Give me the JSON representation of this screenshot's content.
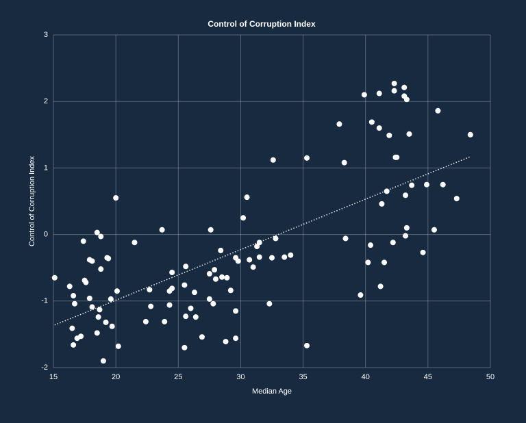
{
  "chart_data": {
    "type": "scatter",
    "title": "Control of Corruption Index",
    "x_label": "Median Age",
    "y_label": "Control of Corruption Index",
    "xlim": [
      15,
      50
    ],
    "xticks": [
      15,
      20,
      25,
      30,
      35,
      40,
      45,
      50
    ],
    "ylim": [
      -2,
      3
    ],
    "yticks": [
      -2,
      -1,
      0,
      1,
      2,
      3
    ],
    "grid": true,
    "color": "#ffffff",
    "trend_color": "#dfe6ee",
    "x": [
      15.1,
      16.3,
      16.6,
      16.7,
      16.5,
      16.6,
      16.9,
      17.2,
      17.4,
      17.5,
      17.6,
      17.9,
      18.1,
      17.9,
      18.1,
      18.5,
      18.8,
      18.8,
      18.5,
      18.6,
      18.7,
      19.0,
      19.2,
      19.3,
      19.4,
      19.6,
      19.7,
      20.0,
      20.1,
      20.2,
      21.5,
      22.4,
      22.7,
      22.8,
      23.7,
      23.9,
      24.3,
      24.3,
      24.5,
      24.5,
      25.6,
      25.5,
      25.6,
      25.5,
      26.0,
      26.3,
      26.4,
      26.9,
      27.6,
      27.5,
      27.5,
      27.8,
      27.9,
      28.0,
      28.4,
      28.5,
      28.9,
      28.8,
      29.2,
      29.6,
      29.8,
      29.6,
      29.6,
      30.2,
      30.5,
      30.7,
      31.0,
      31.3,
      31.5,
      31.5,
      32.3,
      32.5,
      32.6,
      32.8,
      33.5,
      34.0,
      35.3,
      35.3,
      37.9,
      38.3,
      38.4,
      39.6,
      39.9,
      40.2,
      40.4,
      40.5,
      41.1,
      41.1,
      41.2,
      41.3,
      41.5,
      41.7,
      41.9,
      42.2,
      42.3,
      42.3,
      42.4,
      42.5,
      43.1,
      43.1,
      43.2,
      43.2,
      43.3,
      43.3,
      43.5,
      43.7,
      44.6,
      44.9,
      45.5,
      45.8,
      46.2,
      47.3,
      48.4
    ],
    "y": [
      -0.65,
      -0.78,
      -0.92,
      -1.04,
      -1.41,
      -1.66,
      -1.56,
      -1.53,
      -0.1,
      -0.69,
      -0.72,
      -0.38,
      -0.4,
      -0.96,
      -1.09,
      0.03,
      -0.03,
      -0.52,
      -1.48,
      -1.24,
      -1.13,
      -1.9,
      -1.32,
      -0.35,
      -0.36,
      -0.97,
      -1.38,
      0.55,
      -0.85,
      -1.68,
      -0.12,
      -1.31,
      -0.83,
      -1.08,
      0.07,
      -1.31,
      -0.85,
      -1.06,
      -0.81,
      -0.57,
      -0.48,
      -0.76,
      -1.23,
      -1.7,
      -1.11,
      -0.87,
      -1.24,
      -1.54,
      0.07,
      -0.59,
      -0.97,
      -1.04,
      -0.53,
      -0.67,
      -0.24,
      -0.64,
      -0.65,
      -1.61,
      -0.84,
      -0.35,
      -0.4,
      -1.15,
      -1.56,
      0.25,
      0.56,
      -0.38,
      -0.49,
      -0.18,
      -0.12,
      -0.34,
      -1.04,
      -0.35,
      1.12,
      -0.06,
      -0.34,
      -0.31,
      1.15,
      -1.67,
      1.66,
      1.08,
      -0.06,
      -0.91,
      2.1,
      -0.42,
      -0.16,
      1.69,
      2.12,
      1.6,
      -0.78,
      0.46,
      -0.42,
      0.65,
      1.49,
      -0.12,
      2.27,
      2.16,
      1.16,
      1.16,
      2.08,
      2.21,
      0.59,
      -0.02,
      0.1,
      2.03,
      1.51,
      0.74,
      -0.27,
      0.75,
      0.07,
      1.86,
      0.75,
      0.54,
      1.5
    ],
    "trendline": {
      "x": [
        15.1,
        48.4
      ],
      "y": [
        -1.36,
        1.17
      ]
    }
  }
}
